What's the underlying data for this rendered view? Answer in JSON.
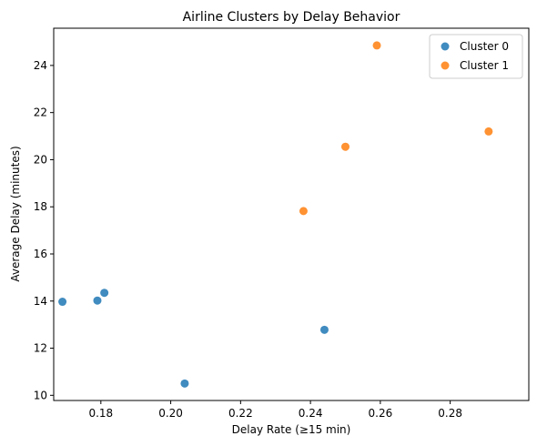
{
  "chart_data": {
    "type": "scatter",
    "title": "Airline Clusters by Delay Behavior",
    "xlabel": "Delay Rate (≥15 min)",
    "ylabel": "Average Delay (minutes)",
    "xlim": [
      0.1665,
      0.3025
    ],
    "ylim": [
      9.78,
      25.58
    ],
    "xticks": [
      0.18,
      0.2,
      0.22,
      0.24,
      0.26,
      0.28
    ],
    "xtick_labels": [
      "0.18",
      "0.20",
      "0.22",
      "0.24",
      "0.26",
      "0.28"
    ],
    "yticks": [
      10,
      12,
      14,
      16,
      18,
      20,
      22,
      24
    ],
    "ytick_labels": [
      "10",
      "12",
      "14",
      "16",
      "18",
      "20",
      "22",
      "24"
    ],
    "grid": false,
    "legend": "top-right",
    "series": [
      {
        "name": "Cluster 0",
        "color": "#1f77b4",
        "points": [
          {
            "x": 0.169,
            "y": 13.97
          },
          {
            "x": 0.179,
            "y": 14.02
          },
          {
            "x": 0.181,
            "y": 14.35
          },
          {
            "x": 0.204,
            "y": 10.5
          },
          {
            "x": 0.244,
            "y": 12.78
          }
        ]
      },
      {
        "name": "Cluster 1",
        "color": "#ff7f0e",
        "points": [
          {
            "x": 0.238,
            "y": 17.82
          },
          {
            "x": 0.25,
            "y": 20.55
          },
          {
            "x": 0.259,
            "y": 24.85
          },
          {
            "x": 0.291,
            "y": 21.2
          }
        ]
      }
    ]
  }
}
